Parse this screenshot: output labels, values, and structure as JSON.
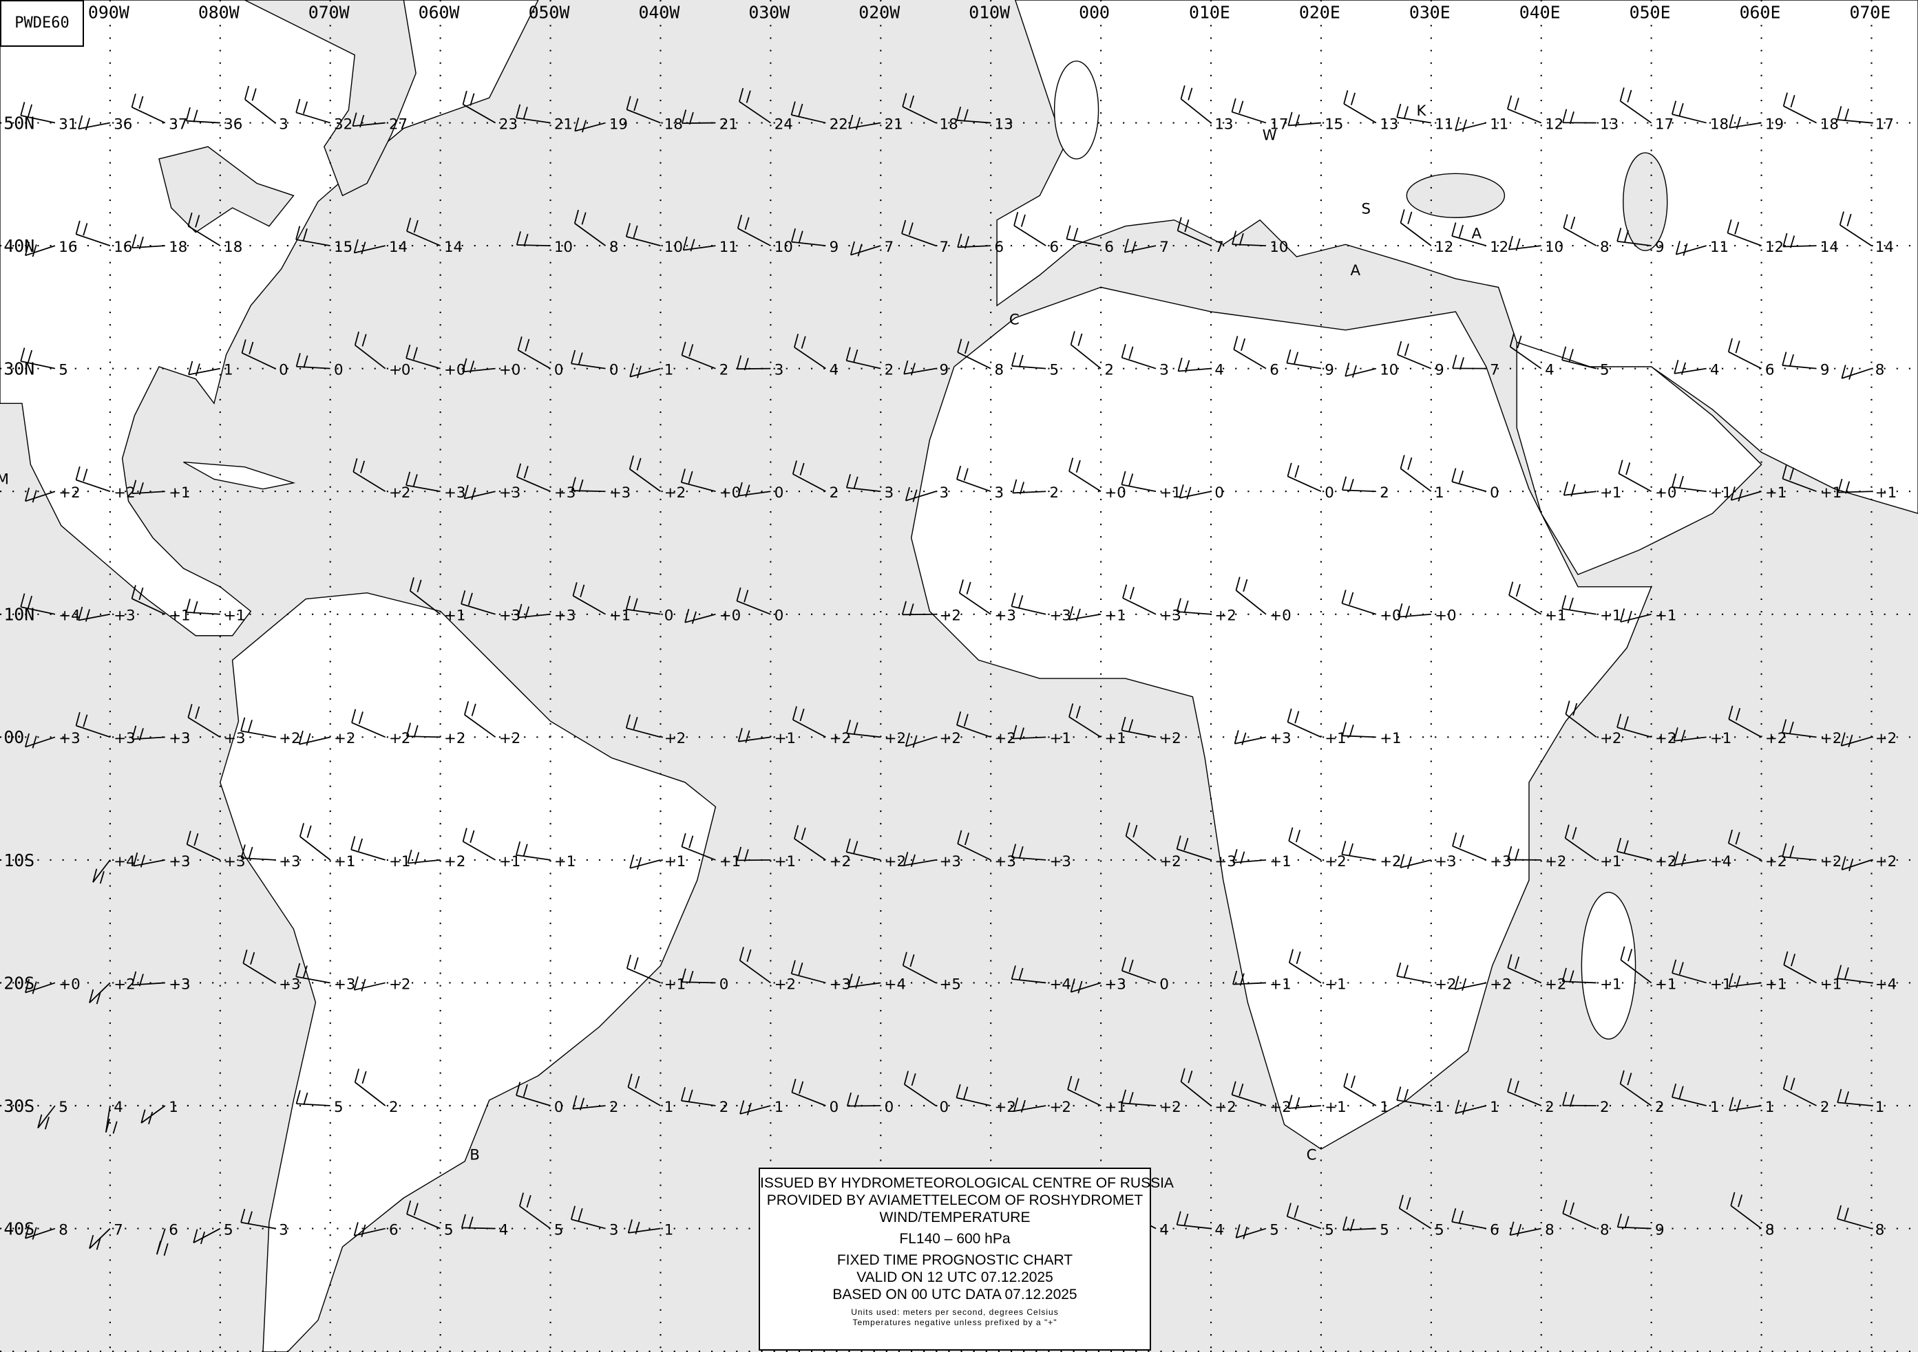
{
  "chart_code": "PWDE60",
  "longitude_labels": [
    "090W",
    "080W",
    "070W",
    "060W",
    "050W",
    "040W",
    "030W",
    "020W",
    "010W",
    "000",
    "010E",
    "020E",
    "030E",
    "040E",
    "050E",
    "060E",
    "070E"
  ],
  "latitude_labels": [
    {
      "lat": 50,
      "text": "50N"
    },
    {
      "lat": 40,
      "text": "40N"
    },
    {
      "lat": 30,
      "text": "30N"
    },
    {
      "lat": 10,
      "text": "10N"
    },
    {
      "lat": 0,
      "text": "00"
    },
    {
      "lat": -10,
      "text": "10S"
    },
    {
      "lat": -20,
      "text": "20S"
    },
    {
      "lat": -30,
      "text": "30S"
    },
    {
      "lat": -40,
      "text": "40S"
    }
  ],
  "pressure_centres": [
    {
      "text": "M",
      "lon": -99,
      "lat": 20
    },
    {
      "text": "W",
      "lon": 16,
      "lat": 48
    },
    {
      "text": "K",
      "lon": 30,
      "lat": 50
    },
    {
      "text": "S",
      "lon": 25,
      "lat": 42
    },
    {
      "text": "A",
      "lon": 35,
      "lat": 40
    },
    {
      "text": "A",
      "lon": 24,
      "lat": 37
    },
    {
      "text": "C",
      "lon": -7,
      "lat": 33
    },
    {
      "text": "B",
      "lon": -56,
      "lat": -35
    },
    {
      "text": "C",
      "lon": 20,
      "lat": -35
    }
  ],
  "temperature_rows": [
    {
      "lat": 50,
      "values": [
        [
          "-95",
          "31"
        ],
        [
          "-90",
          "36"
        ],
        [
          "-85",
          "37"
        ],
        [
          "-80",
          "36"
        ],
        [
          "-75",
          "3"
        ],
        [
          "-70",
          "32"
        ],
        [
          "-65",
          "27"
        ],
        [
          "-55",
          "23"
        ],
        [
          "-50",
          "21"
        ],
        [
          "-45",
          "19"
        ],
        [
          "-40",
          "18"
        ],
        [
          "-35",
          "21"
        ],
        [
          "-30",
          "24"
        ],
        [
          "-25",
          "22"
        ],
        [
          "-20",
          "21"
        ],
        [
          "-15",
          "18"
        ],
        [
          "-10",
          "13"
        ],
        [
          "10",
          "13"
        ],
        [
          "15",
          "17"
        ],
        [
          "20",
          "15"
        ],
        [
          "25",
          "13"
        ],
        [
          "30",
          "11"
        ],
        [
          "35",
          "11"
        ],
        [
          "40",
          "12"
        ],
        [
          "45",
          "13"
        ],
        [
          "50",
          "17"
        ],
        [
          "55",
          "18"
        ],
        [
          "60",
          "19"
        ],
        [
          "65",
          "18"
        ],
        [
          "70",
          "17"
        ]
      ]
    },
    {
      "lat": 40,
      "values": [
        [
          "-95",
          "16"
        ],
        [
          "-90",
          "16"
        ],
        [
          "-85",
          "18"
        ],
        [
          "-80",
          "18"
        ],
        [
          "-70",
          "15"
        ],
        [
          "-65",
          "14"
        ],
        [
          "-60",
          "14"
        ],
        [
          "-50",
          "10"
        ],
        [
          "-45",
          "8"
        ],
        [
          "-40",
          "10"
        ],
        [
          "-35",
          "11"
        ],
        [
          "-30",
          "10"
        ],
        [
          "-25",
          "9"
        ],
        [
          "-20",
          "7"
        ],
        [
          "-15",
          "7"
        ],
        [
          "-10",
          "6"
        ],
        [
          "-5",
          "6"
        ],
        [
          "0",
          "6"
        ],
        [
          "5",
          "7"
        ],
        [
          "10",
          "7"
        ],
        [
          "15",
          "10"
        ],
        [
          "30",
          "12"
        ],
        [
          "35",
          "12"
        ],
        [
          "40",
          "10"
        ],
        [
          "45",
          "8"
        ],
        [
          "50",
          "9"
        ],
        [
          "55",
          "11"
        ],
        [
          "60",
          "12"
        ],
        [
          "65",
          "14"
        ],
        [
          "70",
          "14"
        ]
      ]
    },
    {
      "lat": 30,
      "values": [
        [
          "-95",
          "5"
        ],
        [
          "-80",
          "1"
        ],
        [
          "-75",
          "0"
        ],
        [
          "-70",
          "0"
        ],
        [
          "-65",
          "+0"
        ],
        [
          "-60",
          "+0"
        ],
        [
          "-55",
          "+0"
        ],
        [
          "-50",
          "0"
        ],
        [
          "-45",
          "0"
        ],
        [
          "-40",
          "1"
        ],
        [
          "-35",
          "2"
        ],
        [
          "-30",
          "3"
        ],
        [
          "-25",
          "4"
        ],
        [
          "-20",
          "2"
        ],
        [
          "-15",
          "9"
        ],
        [
          "-10",
          "8"
        ],
        [
          "-5",
          "5"
        ],
        [
          "0",
          "2"
        ],
        [
          "5",
          "3"
        ],
        [
          "10",
          "4"
        ],
        [
          "15",
          "6"
        ],
        [
          "20",
          "9"
        ],
        [
          "25",
          "10"
        ],
        [
          "30",
          "9"
        ],
        [
          "35",
          "7"
        ],
        [
          "40",
          "4"
        ],
        [
          "45",
          "5"
        ],
        [
          "55",
          "4"
        ],
        [
          "60",
          "6"
        ],
        [
          "65",
          "9"
        ],
        [
          "70",
          "8"
        ]
      ]
    },
    {
      "lat": 20,
      "values": [
        [
          "-95",
          "+2"
        ],
        [
          "-90",
          "+2"
        ],
        [
          "-85",
          "+1"
        ],
        [
          "-65",
          "+2"
        ],
        [
          "-60",
          "+3"
        ],
        [
          "-55",
          "+3"
        ],
        [
          "-50",
          "+3"
        ],
        [
          "-45",
          "+3"
        ],
        [
          "-40",
          "+2"
        ],
        [
          "-35",
          "+0"
        ],
        [
          "-30",
          "0"
        ],
        [
          "-25",
          "2"
        ],
        [
          "-20",
          "3"
        ],
        [
          "-15",
          "3"
        ],
        [
          "-10",
          "3"
        ],
        [
          "-5",
          "2"
        ],
        [
          "0",
          "+0"
        ],
        [
          "5",
          "+1"
        ],
        [
          "10",
          "0"
        ],
        [
          "20",
          "0"
        ],
        [
          "25",
          "2"
        ],
        [
          "30",
          "1"
        ],
        [
          "35",
          "0"
        ],
        [
          "45",
          "+1"
        ],
        [
          "50",
          "+0"
        ],
        [
          "55",
          "+1"
        ],
        [
          "60",
          "+1"
        ],
        [
          "65",
          "+1"
        ],
        [
          "70",
          "+1"
        ]
      ]
    },
    {
      "lat": 10,
      "values": [
        [
          "-95",
          "+4"
        ],
        [
          "-90",
          "+3"
        ],
        [
          "-85",
          "+1"
        ],
        [
          "-80",
          "+1"
        ],
        [
          "-60",
          "+1"
        ],
        [
          "-55",
          "+3"
        ],
        [
          "-50",
          "+3"
        ],
        [
          "-45",
          "+1"
        ],
        [
          "-40",
          "0"
        ],
        [
          "-35",
          "+0"
        ],
        [
          "-30",
          "0"
        ],
        [
          "-15",
          "+2"
        ],
        [
          "-10",
          "+3"
        ],
        [
          "-5",
          "+3"
        ],
        [
          "0",
          "+1"
        ],
        [
          "5",
          "+3"
        ],
        [
          "10",
          "+2"
        ],
        [
          "15",
          "+0"
        ],
        [
          "25",
          "+0"
        ],
        [
          "30",
          "+0"
        ],
        [
          "40",
          "+1"
        ],
        [
          "45",
          "+1"
        ],
        [
          "50",
          "+1"
        ]
      ]
    },
    {
      "lat": 0,
      "values": [
        [
          "-95",
          "+3"
        ],
        [
          "-90",
          "+3"
        ],
        [
          "-85",
          "+3"
        ],
        [
          "-80",
          "+3"
        ],
        [
          "-75",
          "+2"
        ],
        [
          "-70",
          "+2"
        ],
        [
          "-65",
          "+2"
        ],
        [
          "-60",
          "+2"
        ],
        [
          "-55",
          "+2"
        ],
        [
          "-40",
          "+2"
        ],
        [
          "-30",
          "+1"
        ],
        [
          "-25",
          "+2"
        ],
        [
          "-20",
          "+2"
        ],
        [
          "-15",
          "+2"
        ],
        [
          "-10",
          "+2"
        ],
        [
          "-5",
          "+1"
        ],
        [
          "0",
          "+1"
        ],
        [
          "5",
          "+2"
        ],
        [
          "15",
          "+3"
        ],
        [
          "20",
          "+1"
        ],
        [
          "25",
          "+1"
        ],
        [
          "45",
          "+2"
        ],
        [
          "50",
          "+2"
        ],
        [
          "55",
          "+1"
        ],
        [
          "60",
          "+2"
        ],
        [
          "65",
          "+2"
        ],
        [
          "70",
          "+2"
        ]
      ]
    },
    {
      "lat": -10,
      "values": [
        [
          "-90",
          "+4"
        ],
        [
          "-85",
          "+3"
        ],
        [
          "-80",
          "+3"
        ],
        [
          "-75",
          "+3"
        ],
        [
          "-70",
          "+1"
        ],
        [
          "-65",
          "+1"
        ],
        [
          "-60",
          "+2"
        ],
        [
          "-55",
          "+1"
        ],
        [
          "-50",
          "+1"
        ],
        [
          "-40",
          "+1"
        ],
        [
          "-35",
          "+1"
        ],
        [
          "-30",
          "+1"
        ],
        [
          "-25",
          "+2"
        ],
        [
          "-20",
          "+2"
        ],
        [
          "-15",
          "+3"
        ],
        [
          "-10",
          "+3"
        ],
        [
          "-5",
          "+3"
        ],
        [
          "5",
          "+2"
        ],
        [
          "10",
          "+3"
        ],
        [
          "15",
          "+1"
        ],
        [
          "20",
          "+2"
        ],
        [
          "25",
          "+2"
        ],
        [
          "30",
          "+3"
        ],
        [
          "35",
          "+3"
        ],
        [
          "40",
          "+2"
        ],
        [
          "45",
          "+1"
        ],
        [
          "50",
          "+2"
        ],
        [
          "55",
          "+4"
        ],
        [
          "60",
          "+2"
        ],
        [
          "65",
          "+2"
        ],
        [
          "70",
          "+2"
        ]
      ]
    },
    {
      "lat": -20,
      "values": [
        [
          "-95",
          "+0"
        ],
        [
          "-90",
          "+2"
        ],
        [
          "-85",
          "+3"
        ],
        [
          "-75",
          "+3"
        ],
        [
          "-70",
          "+3"
        ],
        [
          "-65",
          "+2"
        ],
        [
          "-40",
          "+1"
        ],
        [
          "-35",
          "0"
        ],
        [
          "-30",
          "+2"
        ],
        [
          "-25",
          "+3"
        ],
        [
          "-20",
          "+4"
        ],
        [
          "-15",
          "+5"
        ],
        [
          "-5",
          "+4"
        ],
        [
          "0",
          "+3"
        ],
        [
          "5",
          "0"
        ],
        [
          "15",
          "+1"
        ],
        [
          "20",
          "+1"
        ],
        [
          "30",
          "+2"
        ],
        [
          "35",
          "+2"
        ],
        [
          "40",
          "+2"
        ],
        [
          "45",
          "+1"
        ],
        [
          "50",
          "+1"
        ],
        [
          "55",
          "+1"
        ],
        [
          "60",
          "+1"
        ],
        [
          "65",
          "+1"
        ],
        [
          "70",
          "+4"
        ]
      ]
    },
    {
      "lat": -30,
      "values": [
        [
          "-95",
          "5"
        ],
        [
          "-90",
          "4"
        ],
        [
          "-85",
          "1"
        ],
        [
          "-70",
          "5"
        ],
        [
          "-65",
          "2"
        ],
        [
          "-50",
          "0"
        ],
        [
          "-45",
          "2"
        ],
        [
          "-40",
          "1"
        ],
        [
          "-35",
          "2"
        ],
        [
          "-30",
          "1"
        ],
        [
          "-25",
          "0"
        ],
        [
          "-20",
          "0"
        ],
        [
          "-15",
          "0"
        ],
        [
          "-10",
          "+2"
        ],
        [
          "-5",
          "+2"
        ],
        [
          "0",
          "+1"
        ],
        [
          "5",
          "+2"
        ],
        [
          "10",
          "+2"
        ],
        [
          "15",
          "+2"
        ],
        [
          "20",
          "+1"
        ],
        [
          "25",
          "1"
        ],
        [
          "30",
          "1"
        ],
        [
          "35",
          "1"
        ],
        [
          "40",
          "2"
        ],
        [
          "45",
          "2"
        ],
        [
          "50",
          "2"
        ],
        [
          "55",
          "1"
        ],
        [
          "60",
          "1"
        ],
        [
          "65",
          "2"
        ],
        [
          "70",
          "1"
        ]
      ]
    },
    {
      "lat": -40,
      "values": [
        [
          "-95",
          "8"
        ],
        [
          "-90",
          "7"
        ],
        [
          "-85",
          "6"
        ],
        [
          "-80",
          "5"
        ],
        [
          "-75",
          "3"
        ],
        [
          "-65",
          "6"
        ],
        [
          "-60",
          "5"
        ],
        [
          "-55",
          "4"
        ],
        [
          "-50",
          "5"
        ],
        [
          "-45",
          "3"
        ],
        [
          "-40",
          "1"
        ],
        [
          "5",
          "4"
        ],
        [
          "10",
          "4"
        ],
        [
          "15",
          "5"
        ],
        [
          "20",
          "5"
        ],
        [
          "25",
          "5"
        ],
        [
          "30",
          "5"
        ],
        [
          "35",
          "6"
        ],
        [
          "40",
          "8"
        ],
        [
          "45",
          "8"
        ],
        [
          "50",
          "9"
        ],
        [
          "60",
          "8"
        ],
        [
          "70",
          "8"
        ]
      ]
    }
  ],
  "legend": {
    "line1": "ISSUED BY HYDROMETEOROLOGICAL CENTRE OF RUSSIA",
    "line2": "PROVIDED BY AVIAMETTELECOM OF ROSHYDROMET",
    "line3": "WIND/TEMPERATURE",
    "level": "FL140 – 600 hPa",
    "type": "FIXED TIME PROGNOSTIC CHART",
    "valid": "VALID ON 12 UTC 07.12.2025",
    "based": "BASED ON 00 UTC DATA 07.12.2025",
    "units": "Units used: meters per second, degrees Celsius",
    "note": "Temperatures negative unless prefixed by a \"+\""
  },
  "colors": {
    "sea": "#e8e8e8",
    "land": "#ffffff",
    "lines": "#000000"
  }
}
